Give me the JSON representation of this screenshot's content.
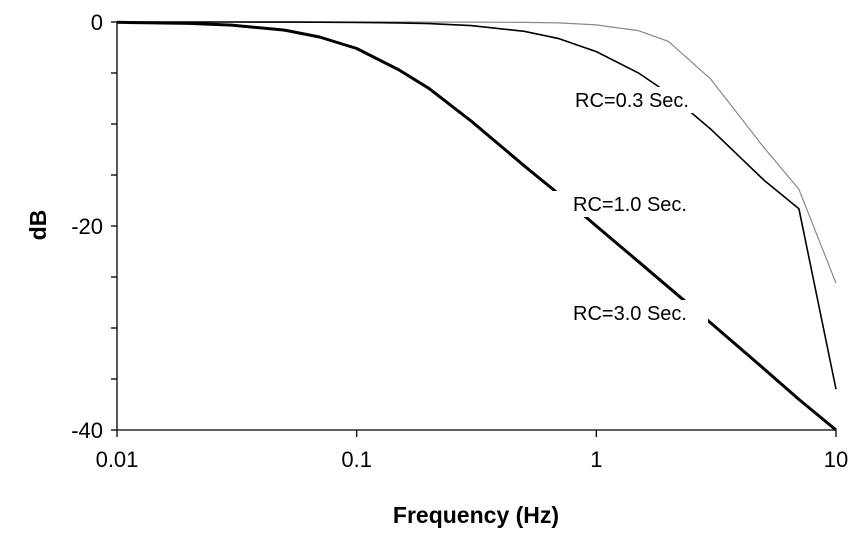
{
  "chart_data": {
    "type": "line",
    "title": "",
    "xlabel": "Frequency (Hz)",
    "ylabel": "dB",
    "xscale": "log",
    "xlim": [
      0.01,
      10
    ],
    "ylim": [
      -40,
      0
    ],
    "grid": false,
    "legend": "none",
    "x_ticks": [
      {
        "value": 0.01,
        "label": "0.01"
      },
      {
        "value": 0.1,
        "label": "0.1"
      },
      {
        "value": 1,
        "label": "1"
      },
      {
        "value": 10,
        "label": "10"
      }
    ],
    "y_ticks": [
      {
        "value": 0,
        "label": "0"
      },
      {
        "value": -20,
        "label": "-20"
      },
      {
        "value": -40,
        "label": "-40"
      }
    ],
    "y_minor_ticks": [
      0,
      -5,
      -10,
      -15,
      -20,
      -25,
      -30,
      -35,
      -40
    ],
    "x": [
      0.01,
      0.02,
      0.03,
      0.05,
      0.07,
      0.1,
      0.15,
      0.2,
      0.3,
      0.5,
      0.7,
      1,
      1.5,
      2,
      3,
      5,
      7,
      10
    ],
    "series": [
      {
        "name": "RC=0.3 Sec.",
        "color": "#888888",
        "line_weight": "thin",
        "values": [
          -0.0,
          -0.0,
          -0.0,
          -0.0,
          -0.0,
          -0.0,
          -0.0,
          -0.01,
          -0.01,
          -0.04,
          -0.09,
          -0.28,
          -0.85,
          -1.9,
          -5.6,
          -12.3,
          -16.4,
          -25.6
        ]
      },
      {
        "name": "RC=1.0 Sec.",
        "color": "#000000",
        "line_weight": "medium",
        "values": [
          -0.0,
          -0.0,
          -0.0,
          -0.01,
          -0.02,
          -0.04,
          -0.09,
          -0.16,
          -0.35,
          -0.91,
          -1.64,
          -2.9,
          -5.0,
          -7.0,
          -10.5,
          -15.5,
          -18.3,
          -36.0
        ]
      },
      {
        "name": "RC=3.0 Sec.",
        "color": "#000000",
        "line_weight": "thick",
        "values": [
          -0.03,
          -0.14,
          -0.3,
          -0.79,
          -1.47,
          -2.6,
          -4.7,
          -6.5,
          -9.7,
          -14.1,
          -16.9,
          -20.0,
          -23.5,
          -26.0,
          -29.5,
          -34.0,
          -37.0,
          -40.0
        ]
      }
    ],
    "series_labels": [
      {
        "series": 0,
        "text": "RC=0.3 Sec."
      },
      {
        "series": 1,
        "text": "RC=1.0 Sec."
      },
      {
        "series": 2,
        "text": "RC=3.0 Sec."
      }
    ]
  }
}
